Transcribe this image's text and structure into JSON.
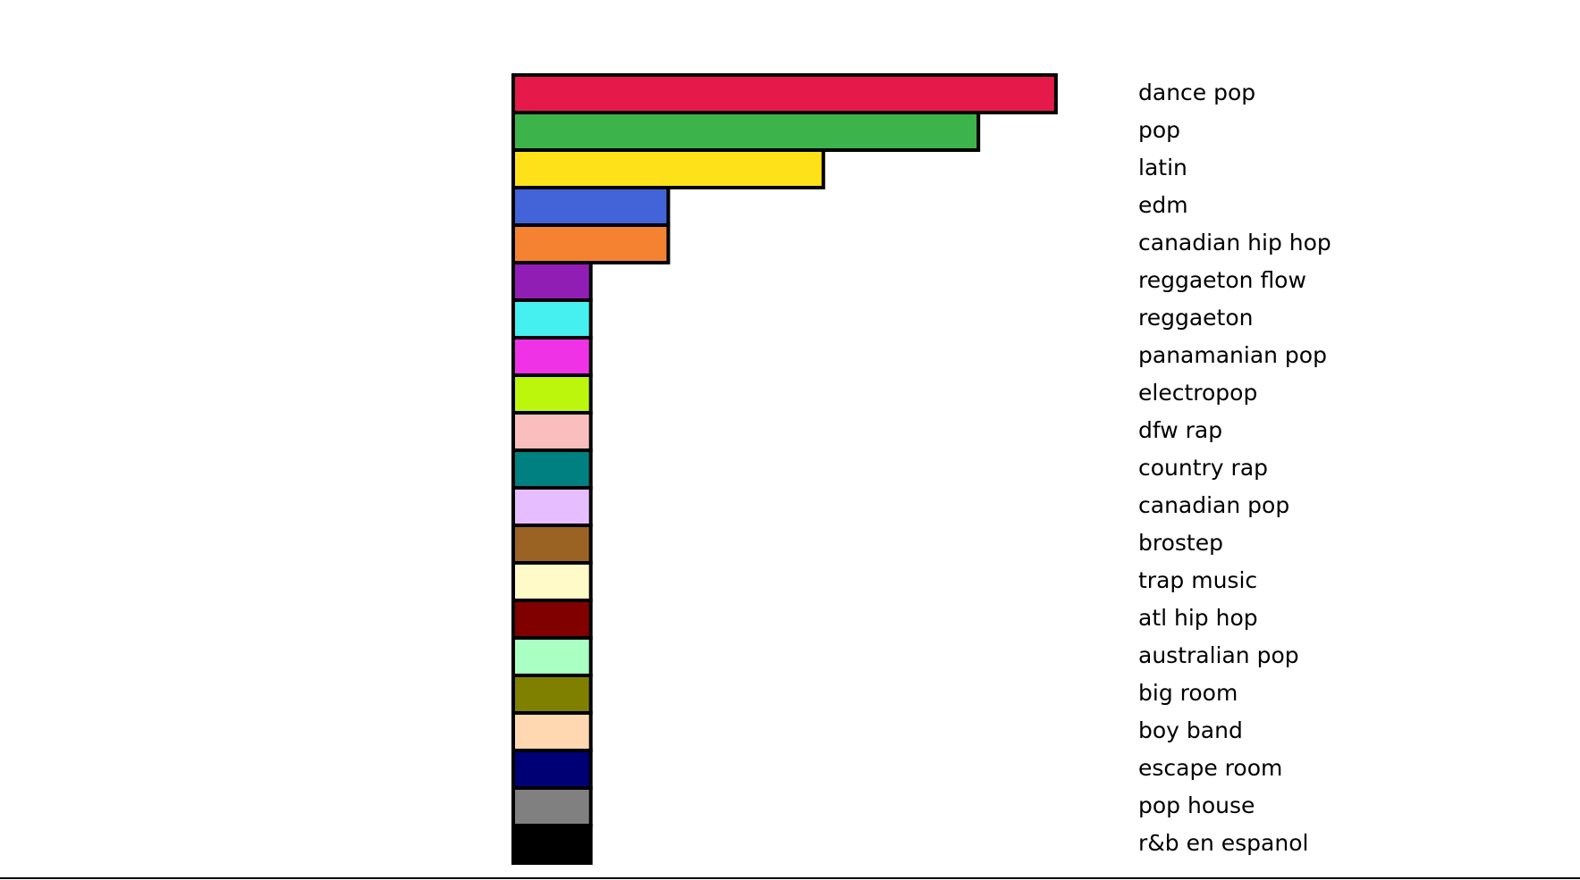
{
  "chart_data": {
    "type": "bar",
    "orientation": "horizontal",
    "grid": false,
    "legend": "none",
    "categories": [
      "dance pop",
      "pop",
      "latin",
      "edm",
      "canadian hip hop",
      "reggaeton flow",
      "reggaeton",
      "panamanian pop",
      "electropop",
      "dfw rap",
      "country rap",
      "canadian pop",
      "brostep",
      "trap music",
      "atl hip hop",
      "australian pop",
      "big room",
      "boy band",
      "escape room",
      "pop house",
      "r&b en espanol"
    ],
    "values": [
      7,
      6,
      4,
      2,
      2,
      1,
      1,
      1,
      1,
      1,
      1,
      1,
      1,
      1,
      1,
      1,
      1,
      1,
      1,
      1,
      1
    ],
    "colors": [
      "#e6194b",
      "#3cb44b",
      "#ffe119",
      "#4363d8",
      "#f58231",
      "#911eb4",
      "#46f0f0",
      "#f032e6",
      "#bcf60c",
      "#fabebe",
      "#008080",
      "#e6beff",
      "#9a6324",
      "#fffac8",
      "#800000",
      "#aaffc3",
      "#808000",
      "#ffd8b1",
      "#000075",
      "#808080",
      "#000000"
    ]
  }
}
